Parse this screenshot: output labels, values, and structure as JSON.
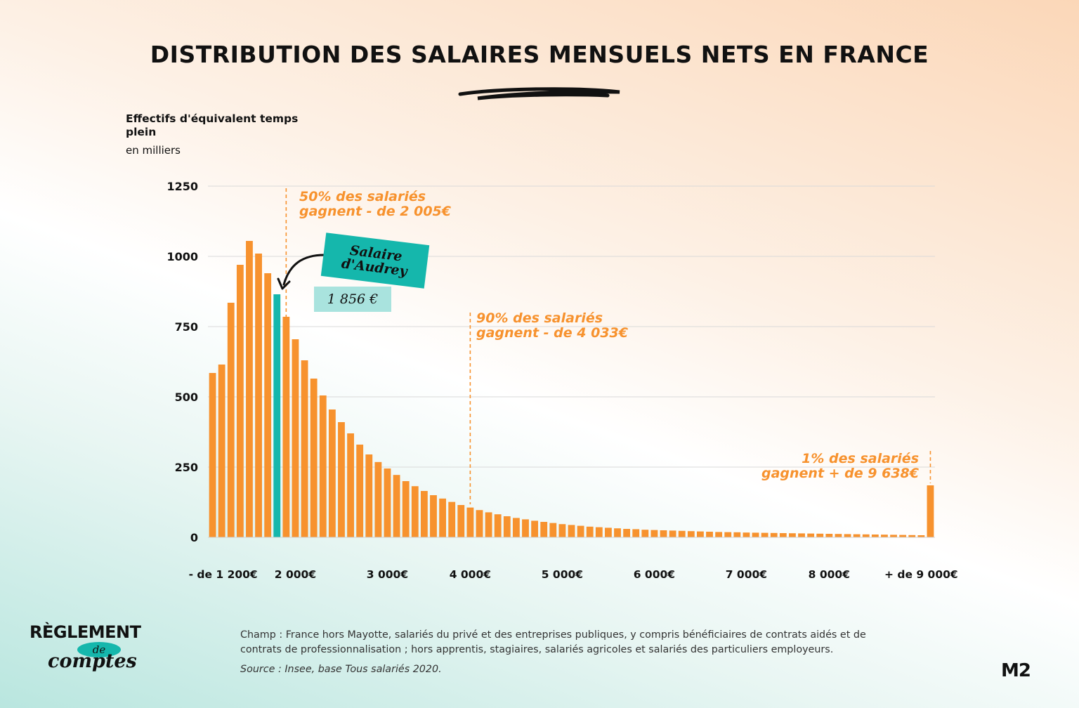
{
  "header": {
    "title": "DISTRIBUTION DES SALAIRES MENSUELS NETS EN FRANCE"
  },
  "axis": {
    "ylabel": "Effectifs d'équivalent temps plein",
    "yunit": "en milliers"
  },
  "annotations": {
    "median_line1": "50% des salariés",
    "median_line2": "gagnent - de 2 005€",
    "p90_line1": "90% des salariés",
    "p90_line2": "gagnent - de 4 033€",
    "p99_line1": "1% des salariés",
    "p99_line2": "gagnent + de 9 638€",
    "badge_label": "Salaire d'Audrey",
    "badge_value": "1 856  €"
  },
  "footer": {
    "champ": "Champ : France hors Mayotte, salariés du privé et des entreprises publiques, y compris bénéficiaires de contrats aidés et de contrats de professionnalisation ; hors apprentis, stagiaires, salariés agricoles et salariés des particuliers employeurs.",
    "source": "Source : Insee, base Tous salariés 2020."
  },
  "logos": {
    "left_line1": "RÈGLEMENT",
    "left_line2": "de",
    "left_line3": "comptes",
    "right": "M2"
  },
  "colors": {
    "bar": "#f7922e",
    "highlight": "#15b7ac",
    "annotation": "#f7922e"
  },
  "chart_data": {
    "type": "bar",
    "title": "DISTRIBUTION DES SALAIRES MENSUELS NETS EN FRANCE",
    "ylabel": "Effectifs d'équivalent temps plein",
    "ylim": [
      0,
      1250
    ],
    "yticks": [
      0,
      250,
      500,
      750,
      1000,
      1250
    ],
    "xtick_labels": [
      "- de 1 200€",
      "2 000€",
      "3 000€",
      "4 000€",
      "5 000€",
      "6 000€",
      "7 000€",
      "8 000€",
      "+  de 9 000€"
    ],
    "xtick_bar_index": [
      1,
      9,
      19,
      28,
      38,
      48,
      58,
      67,
      77
    ],
    "highlight_index": 7,
    "values": [
      585,
      615,
      835,
      970,
      1055,
      1010,
      940,
      865,
      785,
      705,
      630,
      565,
      505,
      455,
      410,
      370,
      330,
      295,
      268,
      245,
      222,
      200,
      182,
      165,
      150,
      138,
      126,
      115,
      106,
      97,
      89,
      82,
      75,
      69,
      64,
      59,
      55,
      51,
      47,
      44,
      41,
      38,
      36,
      34,
      32,
      30,
      29,
      27,
      26,
      25,
      24,
      23,
      22,
      21,
      20,
      19,
      18.5,
      18,
      17,
      16.5,
      16,
      15.5,
      15,
      14.5,
      14,
      13.5,
      13,
      12.5,
      12,
      11.5,
      11,
      10.5,
      10,
      9.5,
      9,
      8.5,
      8,
      7.5,
      185
    ],
    "markers": [
      {
        "label": "50% des salariés gagnent - de 2 005€",
        "bar_index": 8
      },
      {
        "label": "90% des salariés gagnent - de 4 033€",
        "bar_index": 28
      },
      {
        "label": "1% des salariés gagnent + de 9 638€",
        "bar_index": 78
      }
    ],
    "grid": true
  }
}
